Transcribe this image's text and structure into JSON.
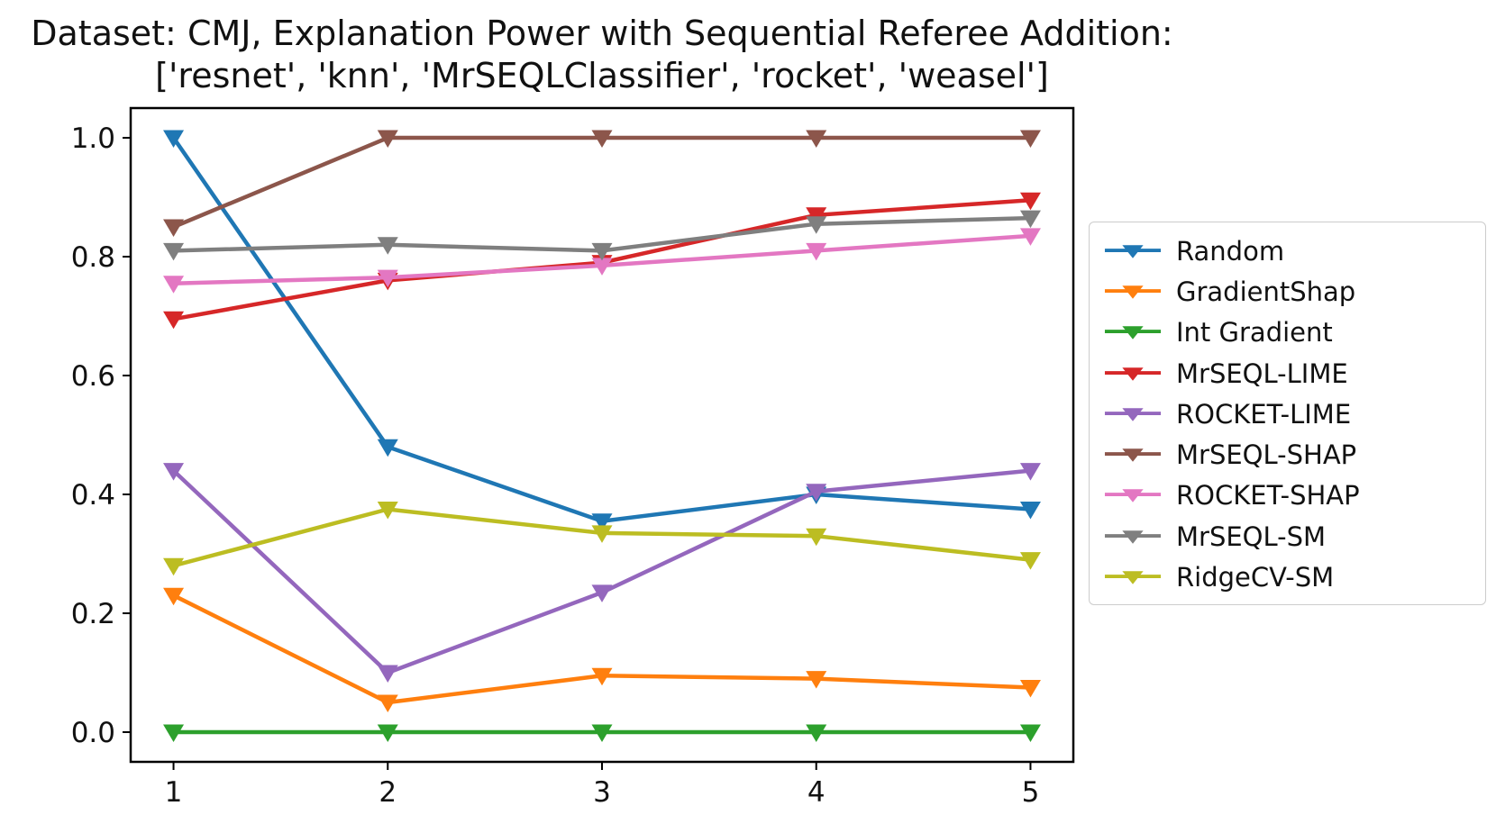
{
  "chart_data": {
    "type": "line",
    "title_line1": "Dataset: CMJ, Explanation Power with Sequential Referee Addition:",
    "title_line2": "['resnet', 'knn', 'MrSEQLClassifier', 'rocket', 'weasel']",
    "xlabel": "",
    "ylabel": "",
    "x": [
      1,
      2,
      3,
      4,
      5
    ],
    "xticks": [
      "1",
      "2",
      "3",
      "4",
      "5"
    ],
    "yticks": [
      "0.0",
      "0.2",
      "0.4",
      "0.6",
      "0.8",
      "1.0"
    ],
    "xlim": [
      0.8,
      5.2
    ],
    "ylim": [
      -0.05,
      1.05
    ],
    "grid": false,
    "marker": "triangle-down",
    "legend_position": "right-outside",
    "axis_color": "#000000",
    "series": [
      {
        "name": "Random",
        "color": "#1f77b4",
        "values": [
          1.0,
          0.48,
          0.355,
          0.4,
          0.375
        ]
      },
      {
        "name": "GradientShap",
        "color": "#ff7f0e",
        "values": [
          0.23,
          0.05,
          0.095,
          0.09,
          0.075
        ]
      },
      {
        "name": "Int Gradient",
        "color": "#2ca02c",
        "values": [
          0.0,
          0.0,
          0.0,
          0.0,
          0.0
        ]
      },
      {
        "name": "MrSEQL-LIME",
        "color": "#d62728",
        "values": [
          0.695,
          0.76,
          0.79,
          0.87,
          0.895
        ]
      },
      {
        "name": "ROCKET-LIME",
        "color": "#9467bd",
        "values": [
          0.44,
          0.1,
          0.235,
          0.405,
          0.44
        ]
      },
      {
        "name": "MrSEQL-SHAP",
        "color": "#8c564b",
        "values": [
          0.85,
          1.0,
          1.0,
          1.0,
          1.0
        ]
      },
      {
        "name": "ROCKET-SHAP",
        "color": "#e377c2",
        "values": [
          0.755,
          0.765,
          0.785,
          0.81,
          0.835
        ]
      },
      {
        "name": "MrSEQL-SM",
        "color": "#7f7f7f",
        "values": [
          0.81,
          0.82,
          0.81,
          0.855,
          0.865
        ]
      },
      {
        "name": "RidgeCV-SM",
        "color": "#bcbd22",
        "values": [
          0.28,
          0.375,
          0.335,
          0.33,
          0.29
        ]
      }
    ]
  }
}
